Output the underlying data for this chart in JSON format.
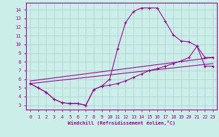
{
  "background_color": "#cceee8",
  "grid_color": "#aacccc",
  "line_color": "#990099",
  "xlabel": "Windchill (Refroidissement éolien,°C)",
  "xlim": [
    -0.5,
    23.5
  ],
  "ylim": [
    2.5,
    14.8
  ],
  "xticks": [
    0,
    1,
    2,
    3,
    4,
    5,
    6,
    7,
    8,
    9,
    10,
    11,
    12,
    13,
    14,
    15,
    16,
    17,
    18,
    19,
    20,
    21,
    22,
    23
  ],
  "yticks": [
    3,
    4,
    5,
    6,
    7,
    8,
    9,
    10,
    11,
    12,
    13,
    14
  ],
  "curve1_x": [
    0,
    1,
    2,
    3,
    4,
    5,
    6,
    7,
    8,
    9,
    10,
    11,
    12,
    13,
    14,
    15,
    16,
    17,
    18,
    19,
    20,
    21,
    22,
    23
  ],
  "curve1_y": [
    5.5,
    5.0,
    4.5,
    3.7,
    3.3,
    3.2,
    3.2,
    3.0,
    4.8,
    5.2,
    6.0,
    9.5,
    12.5,
    13.8,
    14.2,
    14.2,
    14.2,
    12.7,
    11.1,
    10.4,
    10.3,
    9.8,
    8.5,
    8.5
  ],
  "curve2_x": [
    0,
    1,
    2,
    3,
    4,
    5,
    6,
    7,
    8,
    9,
    10,
    11,
    12,
    13,
    14,
    15,
    16,
    17,
    18,
    19,
    20,
    21,
    22,
    23
  ],
  "curve2_y": [
    5.5,
    5.0,
    4.5,
    3.7,
    3.3,
    3.2,
    3.2,
    3.0,
    4.8,
    5.2,
    5.3,
    5.5,
    5.8,
    6.2,
    6.6,
    7.0,
    7.2,
    7.5,
    7.8,
    8.1,
    8.5,
    9.8,
    7.5,
    7.5
  ],
  "line3_x": [
    0,
    23
  ],
  "line3_y": [
    5.8,
    8.5
  ],
  "line4_x": [
    0,
    23
  ],
  "line4_y": [
    5.5,
    7.8
  ]
}
